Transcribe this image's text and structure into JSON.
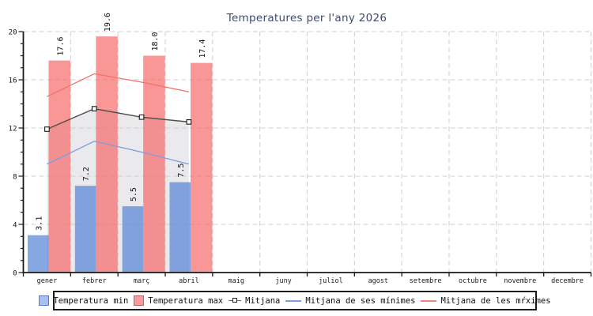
{
  "title": "Temperatures per l'any 2026",
  "chart_data": {
    "type": "bar+line",
    "title": "Temperatures per l'any 2026",
    "categories": [
      "gener",
      "febrer",
      "març",
      "abril",
      "maig",
      "juny",
      "juliol",
      "agost",
      "setembre",
      "octubre",
      "novembre",
      "decembre"
    ],
    "series": [
      {
        "name": "Temperatura min",
        "type": "bar",
        "color": "rgba(83,129,214,0.70)",
        "values": [
          3.1,
          7.2,
          5.5,
          7.5
        ]
      },
      {
        "name": "Temperatura max",
        "type": "bar",
        "color": "rgba(246,97,97,0.66)",
        "values": [
          17.6,
          19.6,
          18.0,
          17.4
        ]
      },
      {
        "name": "Mitjana",
        "type": "line-marker-area",
        "color": "#4c4c4c",
        "area_color": "#eaeaec",
        "values": [
          11.9,
          13.6,
          12.9,
          12.5
        ]
      },
      {
        "name": "Mitjana de ses mínimes",
        "type": "line",
        "color": "#7c9ce4",
        "values": [
          9.0,
          10.9,
          10.0,
          9.0
        ]
      },
      {
        "name": "Mitjana de les mŕximes",
        "type": "line",
        "color": "#f2706a",
        "values": [
          14.6,
          16.5,
          15.8,
          15.0
        ]
      }
    ],
    "ylim": [
      0,
      20
    ],
    "y_major_ticks": [
      0,
      4,
      8,
      12,
      16,
      20
    ],
    "y_minor_step": 1,
    "grid": "dashed",
    "legend_position": "bottom"
  },
  "legend": {
    "items": [
      {
        "label": "Temperatura min",
        "swatch": "box-blue"
      },
      {
        "label": "Temperatura max",
        "swatch": "box-red"
      },
      {
        "label": "Mitjana",
        "swatch": "marker"
      },
      {
        "label": "Mitjana de ses mínimes",
        "swatch": "line-blue"
      },
      {
        "label": "Mitjana de les mŕximes",
        "swatch": "line-red"
      }
    ]
  },
  "colors": {
    "grid": "#cfcfcf",
    "axis": "#1a1a1a",
    "title": "#3e4a6e",
    "area": "#eaeaec"
  }
}
